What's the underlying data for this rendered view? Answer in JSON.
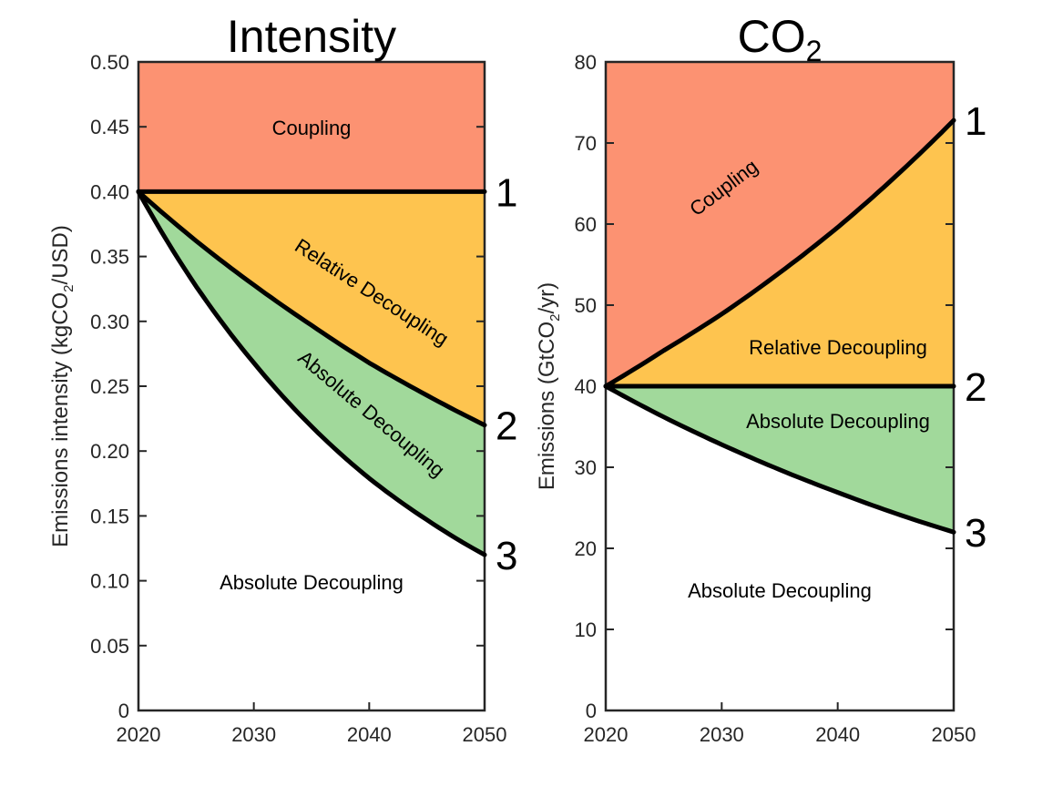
{
  "chart_data": [
    {
      "type": "area",
      "title": "Intensity",
      "xlabel": "",
      "ylabel": "Emissions intensity (kgCO2/USD)",
      "ylabel_parts": {
        "pre": "Emissions intensity (kgCO",
        "sub": "2",
        "post": "/USD)"
      },
      "xlim": [
        2020,
        2050
      ],
      "ylim": [
        0,
        0.5
      ],
      "xticks": [
        2020,
        2030,
        2040,
        2050
      ],
      "xtick_labels": [
        "2020",
        "2030",
        "2040",
        "2050"
      ],
      "yticks": [
        0,
        0.05,
        0.1,
        0.15,
        0.2,
        0.25,
        0.3,
        0.35,
        0.4,
        0.45,
        0.5
      ],
      "ytick_labels": [
        "0",
        "0.05",
        "0.10",
        "0.15",
        "0.20",
        "0.25",
        "0.30",
        "0.35",
        "0.40",
        "0.45",
        "0.50"
      ],
      "grid": false,
      "x": [
        2020,
        2025,
        2030,
        2035,
        2040,
        2045,
        2050
      ],
      "series": [
        {
          "name": "1",
          "values": [
            0.4,
            0.4,
            0.4,
            0.4,
            0.4,
            0.4,
            0.4
          ]
        },
        {
          "name": "2",
          "values": [
            0.4,
            0.362,
            0.328,
            0.297,
            0.268,
            0.243,
            0.22
          ]
        },
        {
          "name": "3",
          "values": [
            0.4,
            0.327,
            0.268,
            0.219,
            0.179,
            0.147,
            0.12
          ]
        }
      ],
      "regions": [
        {
          "label": "Coupling",
          "between": [
            "top",
            "1"
          ],
          "color": "#fc9272"
        },
        {
          "label": "Relative Decoupling",
          "between": [
            "1",
            "2"
          ],
          "color": "#fec44f"
        },
        {
          "label": "Absolute Decoupling",
          "between": [
            "2",
            "3"
          ],
          "color": "#a1d99b"
        },
        {
          "label": "Absolute Decoupling",
          "between": [
            "3",
            "bottom"
          ],
          "color": "#ffffff"
        }
      ]
    },
    {
      "type": "area",
      "title": "CO2",
      "title_parts": {
        "pre": "CO",
        "sub": "2"
      },
      "xlabel": "",
      "ylabel": "Emissions (GtCO2/yr)",
      "ylabel_parts": {
        "pre": "Emissions (GtCO",
        "sub": "2",
        "post": "/yr)"
      },
      "xlim": [
        2020,
        2050
      ],
      "ylim": [
        0,
        80
      ],
      "xticks": [
        2020,
        2030,
        2040,
        2050
      ],
      "xtick_labels": [
        "2020",
        "2030",
        "2040",
        "2050"
      ],
      "yticks": [
        0,
        10,
        20,
        30,
        40,
        50,
        60,
        70,
        80
      ],
      "ytick_labels": [
        "0",
        "10",
        "20",
        "30",
        "40",
        "50",
        "60",
        "70",
        "80"
      ],
      "grid": false,
      "x": [
        2020,
        2025,
        2030,
        2035,
        2040,
        2045,
        2050
      ],
      "series": [
        {
          "name": "1",
          "values": [
            40,
            44.4,
            48.9,
            54.0,
            59.6,
            65.9,
            72.8
          ]
        },
        {
          "name": "2",
          "values": [
            40,
            40,
            40,
            40,
            40,
            40,
            40
          ]
        },
        {
          "name": "3",
          "values": [
            40,
            36.2,
            32.8,
            29.7,
            26.9,
            24.3,
            22.0
          ]
        }
      ],
      "regions": [
        {
          "label": "Coupling",
          "between": [
            "top",
            "1"
          ],
          "color": "#fc9272"
        },
        {
          "label": "Relative Decoupling",
          "between": [
            "1",
            "2"
          ],
          "color": "#fec44f"
        },
        {
          "label": "Absolute Decoupling",
          "between": [
            "2",
            "3"
          ],
          "color": "#a1d99b"
        },
        {
          "label": "Absolute Decoupling",
          "between": [
            "3",
            "bottom"
          ],
          "color": "#ffffff"
        }
      ]
    }
  ]
}
